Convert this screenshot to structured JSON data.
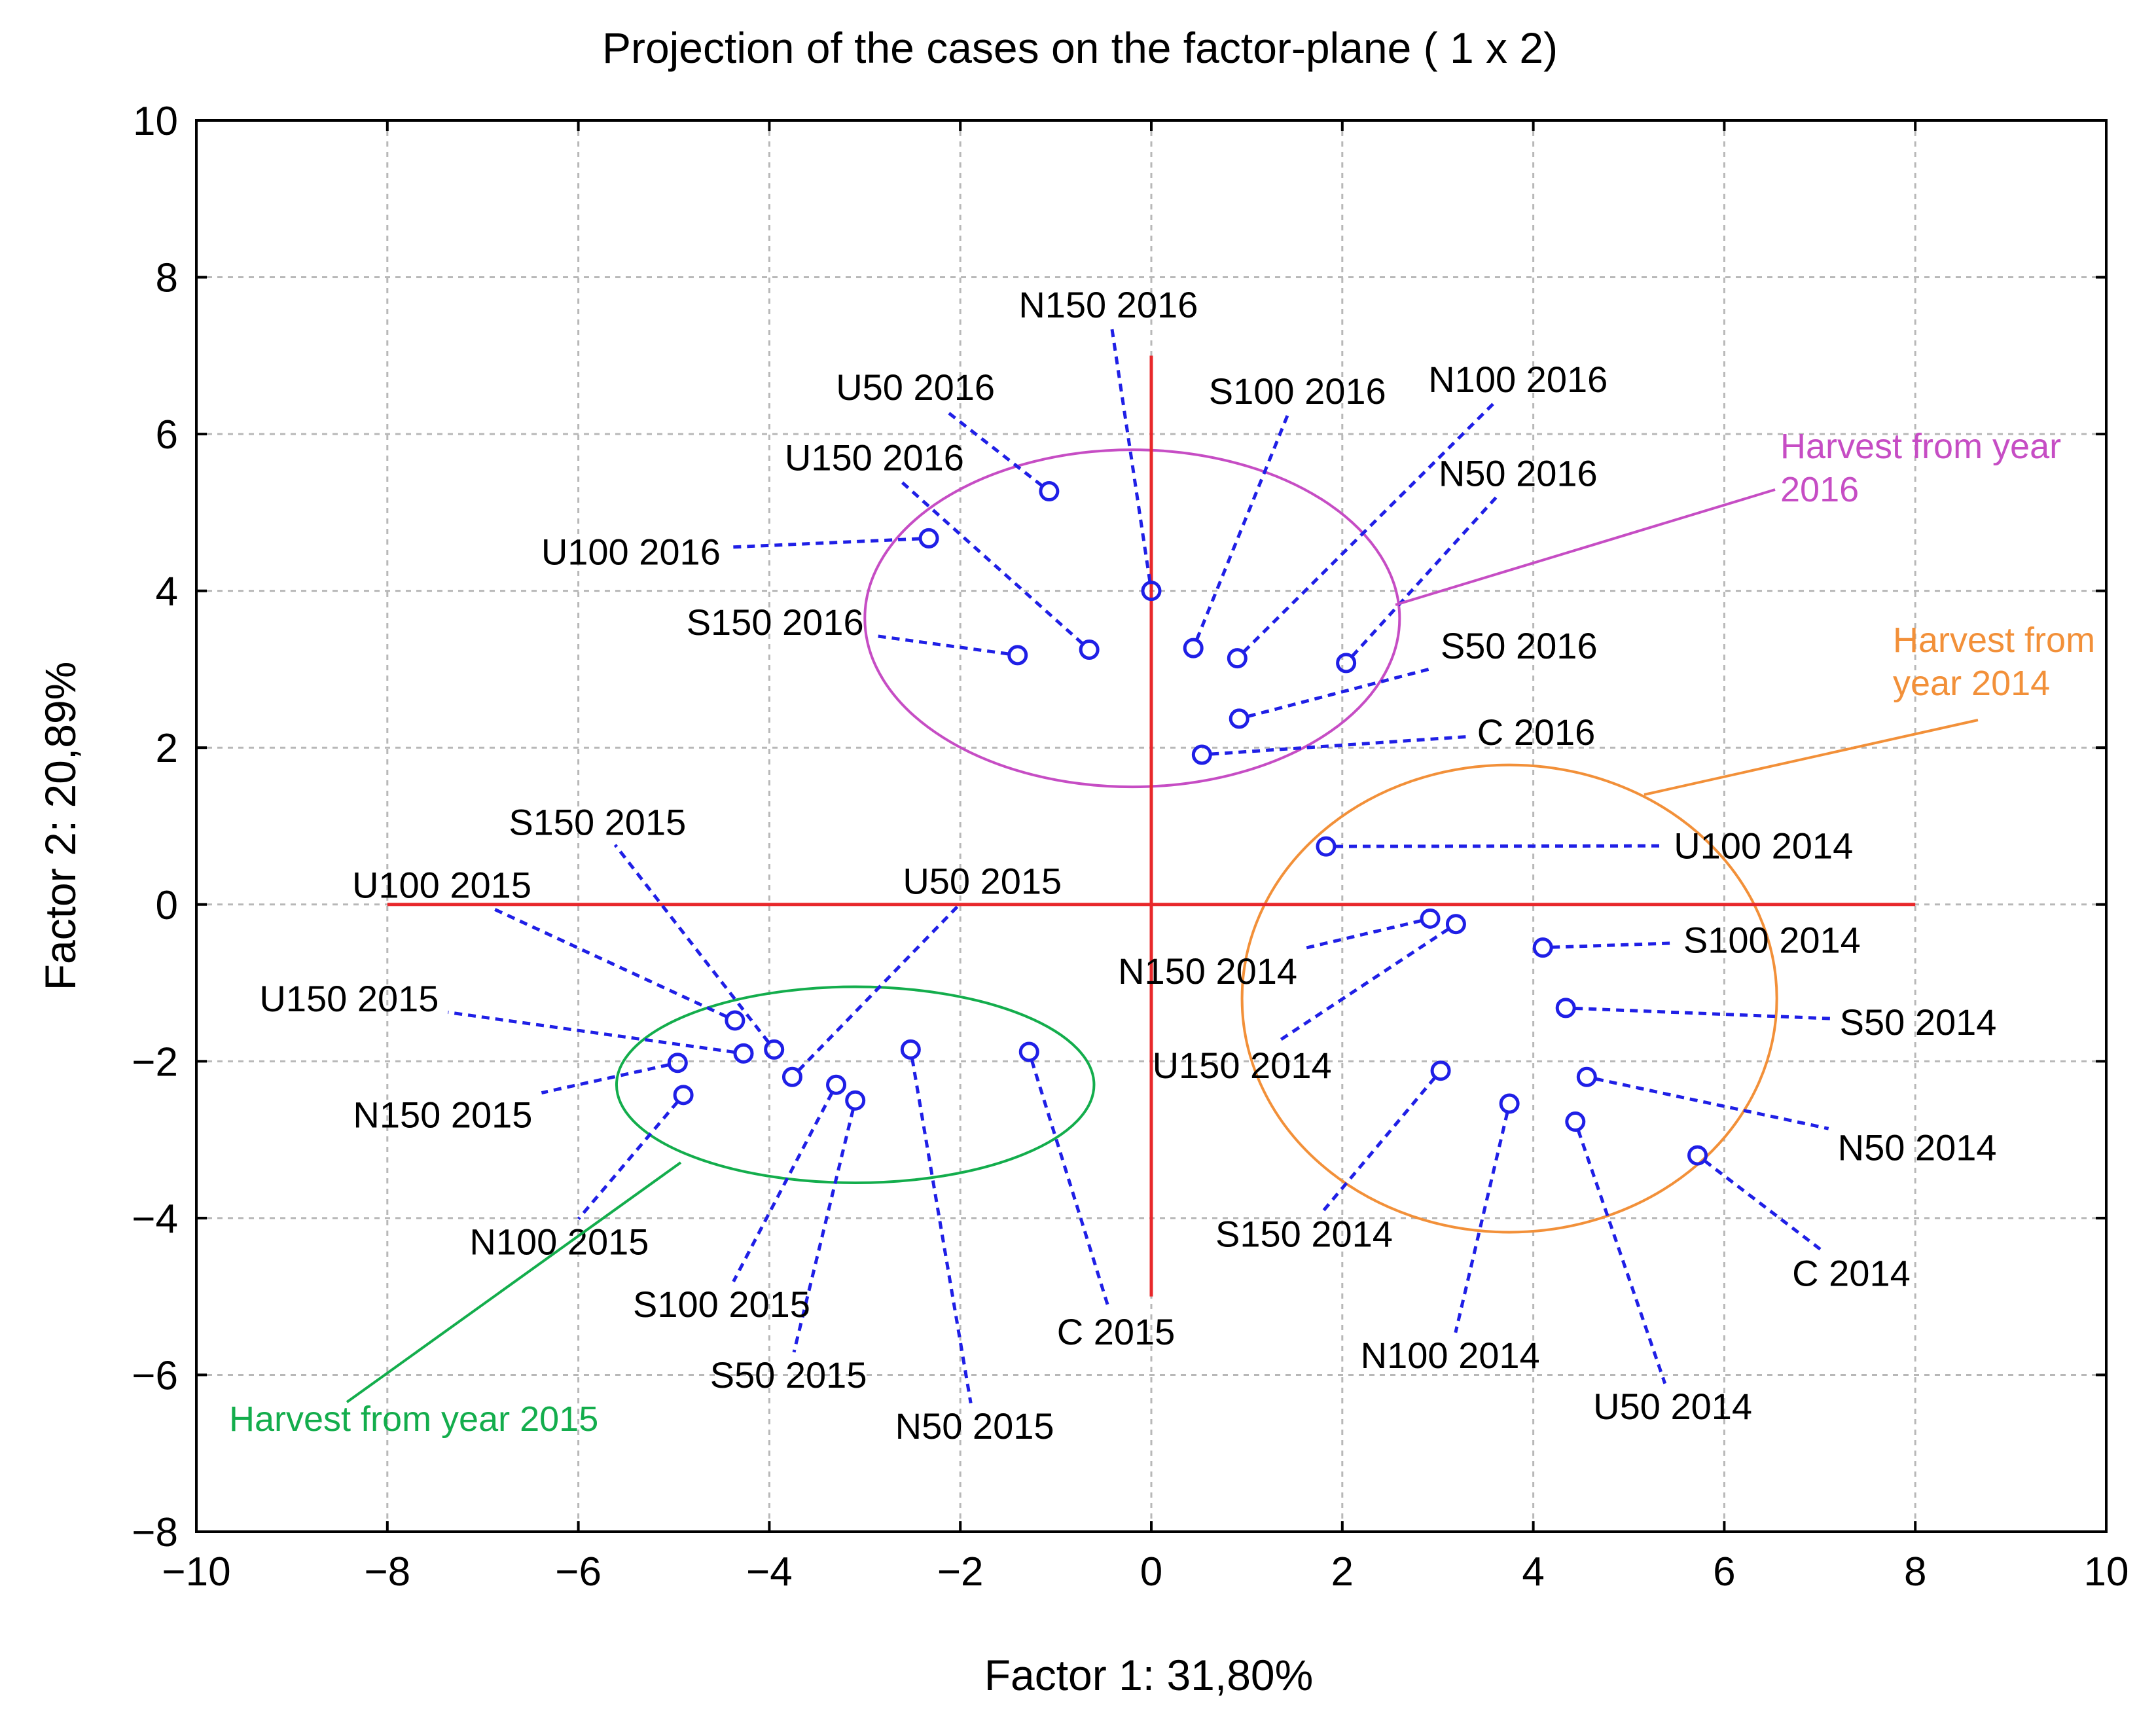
{
  "chart_data": {
    "type": "scatter",
    "title": "Projection of the cases on the factor-plane (  1 x   2)",
    "xlabel": "Factor 1: 31,80%",
    "ylabel": "Factor 2: 20,89%",
    "xlim": [
      -10,
      10
    ],
    "ylim": [
      -8,
      10
    ],
    "xticks": [
      -10,
      -8,
      -6,
      -4,
      -2,
      0,
      2,
      4,
      6,
      8,
      10
    ],
    "yticks": [
      -8,
      -6,
      -4,
      -2,
      0,
      2,
      4,
      6,
      8,
      10
    ],
    "xtick_labels": [
      "−10",
      "−8",
      "−6",
      "−4",
      "−2",
      "0",
      "2",
      "4",
      "6",
      "8",
      "10"
    ],
    "ytick_labels": [
      "−8",
      "−6",
      "−4",
      "−2",
      "0",
      "2",
      "4",
      "6",
      "8",
      "10"
    ],
    "grid": true,
    "reference_lines": {
      "horizontal": {
        "y": 0,
        "x_from": -8,
        "x_to": 8
      },
      "vertical": {
        "x": 0,
        "y_from": -5,
        "y_to": 7
      }
    },
    "points": [
      {
        "label": "N150 2016",
        "x": 0.0,
        "y": 4.0,
        "lx": -0.45,
        "ly": 7.65
      },
      {
        "label": "U50 2016",
        "x": -1.07,
        "y": 5.27,
        "lx": -2.47,
        "ly": 6.6
      },
      {
        "label": "S100 2016",
        "x": 0.44,
        "y": 3.27,
        "lx": 1.53,
        "ly": 6.55
      },
      {
        "label": "N100 2016",
        "x": 0.9,
        "y": 3.14,
        "lx": 3.84,
        "ly": 6.7
      },
      {
        "label": "U150 2016",
        "x": -0.65,
        "y": 3.25,
        "lx": -2.9,
        "ly": 5.7
      },
      {
        "label": "N50 2016",
        "x": 2.04,
        "y": 3.08,
        "lx": 3.84,
        "ly": 5.5
      },
      {
        "label": "U100 2016",
        "x": -2.33,
        "y": 4.67,
        "lx": -5.45,
        "ly": 4.5
      },
      {
        "label": "S150 2016",
        "x": -1.4,
        "y": 3.18,
        "lx": -3.94,
        "ly": 3.6
      },
      {
        "label": "S50 2016",
        "x": 0.92,
        "y": 2.37,
        "lx": 3.85,
        "ly": 3.3
      },
      {
        "label": "C 2016",
        "x": 0.53,
        "y": 1.91,
        "lx": 4.03,
        "ly": 2.2
      },
      {
        "label": "U100 2014",
        "x": 1.83,
        "y": 0.74,
        "lx": 6.41,
        "ly": 0.75
      },
      {
        "label": "N150 2014",
        "x": 2.92,
        "y": -0.18,
        "lx": 0.59,
        "ly": -0.85
      },
      {
        "label": "U150 2014",
        "x": 3.19,
        "y": -0.25,
        "lx": 0.95,
        "ly": -2.05
      },
      {
        "label": "S100 2014",
        "x": 4.1,
        "y": -0.55,
        "lx": 6.5,
        "ly": -0.45
      },
      {
        "label": "S50 2014",
        "x": 4.34,
        "y": -1.32,
        "lx": 8.03,
        "ly": -1.5
      },
      {
        "label": "S150 2014",
        "x": 3.03,
        "y": -2.12,
        "lx": 1.6,
        "ly": -4.2
      },
      {
        "label": "N50 2014",
        "x": 4.56,
        "y": -2.2,
        "lx": 8.02,
        "ly": -3.1
      },
      {
        "label": "N100 2014",
        "x": 3.75,
        "y": -2.54,
        "lx": 3.13,
        "ly": -5.75
      },
      {
        "label": "U50 2014",
        "x": 4.44,
        "y": -2.77,
        "lx": 5.46,
        "ly": -6.4
      },
      {
        "label": "C 2014",
        "x": 5.72,
        "y": -3.2,
        "lx": 7.33,
        "ly": -4.7
      },
      {
        "label": "S150 2015",
        "x": -3.95,
        "y": -1.85,
        "lx": -5.8,
        "ly": 1.05
      },
      {
        "label": "U100 2015",
        "x": -4.36,
        "y": -1.48,
        "lx": -7.43,
        "ly": 0.25
      },
      {
        "label": "U50 2015",
        "x": -3.76,
        "y": -2.2,
        "lx": -1.77,
        "ly": 0.3
      },
      {
        "label": "U150 2015",
        "x": -4.27,
        "y": -1.9,
        "lx": -8.4,
        "ly": -1.2
      },
      {
        "label": "N150 2015",
        "x": -4.96,
        "y": -2.02,
        "lx": -7.42,
        "ly": -2.68
      },
      {
        "label": "N100 2015",
        "x": -4.9,
        "y": -2.43,
        "lx": -6.2,
        "ly": -4.3
      },
      {
        "label": "S100 2015",
        "x": -3.3,
        "y": -2.3,
        "lx": -4.5,
        "ly": -5.1
      },
      {
        "label": "S50 2015",
        "x": -3.1,
        "y": -2.5,
        "lx": -3.8,
        "ly": -6.0
      },
      {
        "label": "N50 2015",
        "x": -2.52,
        "y": -1.85,
        "lx": -1.85,
        "ly": -6.65
      },
      {
        "label": "C 2015",
        "x": -1.28,
        "y": -1.88,
        "lx": -0.37,
        "ly": -5.45
      }
    ],
    "groups": [
      {
        "label_lines": [
          "Harvest from year",
          "2016"
        ],
        "color": "#c64dc4",
        "cx": -0.2,
        "cy": 3.65,
        "rx": 2.8,
        "ry": 2.15
      },
      {
        "label_lines": [
          "Harvest from",
          "year 2014"
        ],
        "color": "#f29039",
        "cx": 3.75,
        "cy": -1.2,
        "rx": 2.8,
        "ry": 2.98
      },
      {
        "label_lines": [
          "Harvest from year 2015"
        ],
        "color": "#13ad4c",
        "cx": -3.1,
        "cy": -2.3,
        "rx": 2.5,
        "ry": 1.25
      }
    ]
  }
}
